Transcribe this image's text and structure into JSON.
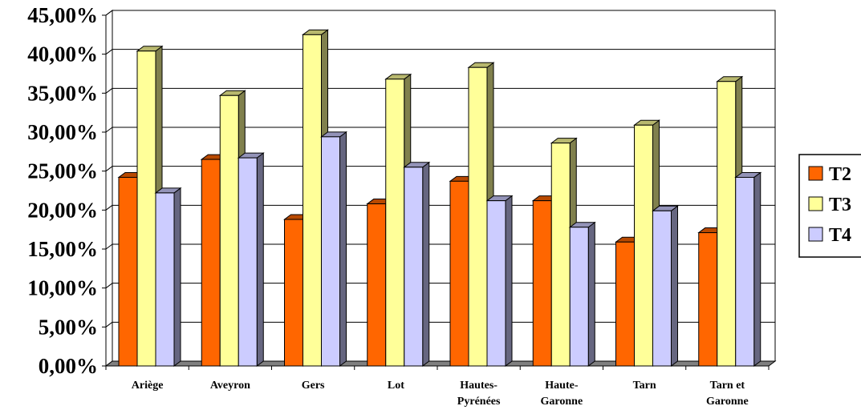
{
  "chart_data": {
    "type": "bar",
    "title": "",
    "xlabel": "",
    "ylabel": "",
    "categories": [
      [
        "Ariège"
      ],
      [
        "Aveyron"
      ],
      [
        "Gers"
      ],
      [
        "Lot"
      ],
      [
        "Hautes-",
        "Pyrénées"
      ],
      [
        "Haute-",
        "Garonne"
      ],
      [
        "Tarn"
      ],
      [
        "Tarn et",
        "Garonne"
      ]
    ],
    "series": [
      {
        "name": "T2",
        "color": "#FF6600",
        "values": [
          24.2,
          26.5,
          18.8,
          20.8,
          23.7,
          21.2,
          15.9,
          17.1
        ]
      },
      {
        "name": "T3",
        "color": "#FFFF99",
        "values": [
          40.4,
          34.7,
          42.5,
          36.8,
          38.3,
          28.6,
          30.9,
          36.5
        ]
      },
      {
        "name": "T4",
        "color": "#CCCCFF",
        "values": [
          22.2,
          26.7,
          29.4,
          25.5,
          21.2,
          17.8,
          19.9,
          24.2
        ]
      }
    ],
    "yticks": [
      "0,00%",
      "5,00%",
      "10,00%",
      "15,00%",
      "20,00%",
      "25,00%",
      "30,00%",
      "35,00%",
      "40,00%",
      "45,00%"
    ],
    "ylim": [
      0,
      45
    ],
    "grid": true,
    "legend_position": "right"
  }
}
